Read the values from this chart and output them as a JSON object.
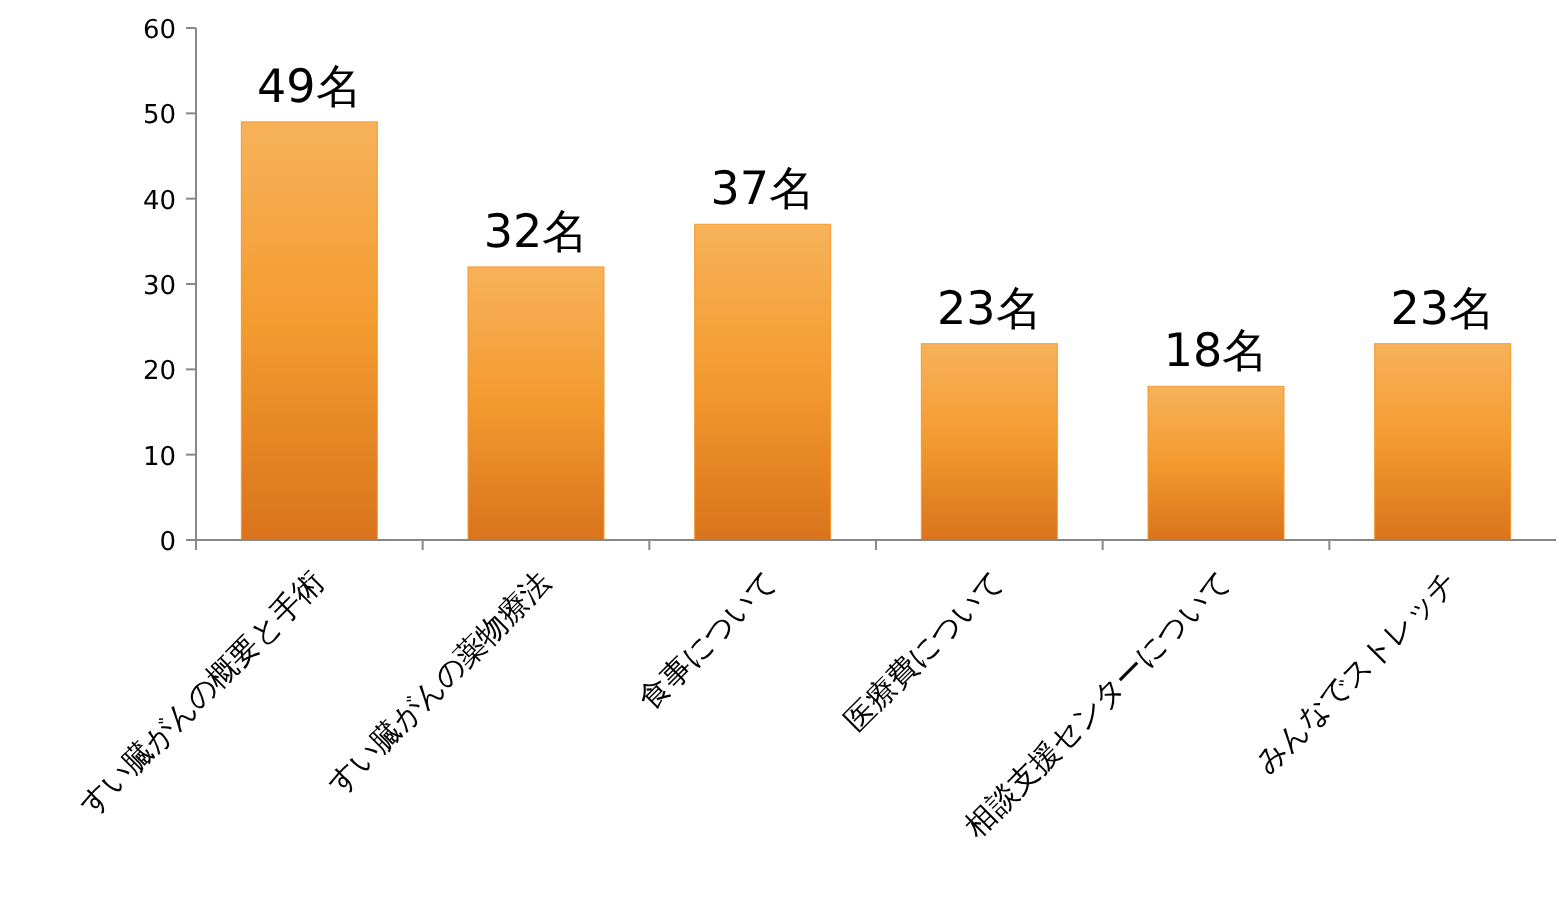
{
  "chart_data": {
    "type": "bar",
    "categories": [
      "すい臓がんの概要と手術",
      "すい臓がんの薬物療法",
      "食事について",
      "医療費について",
      "相談支援センターについて",
      "みんなでストレッチ"
    ],
    "values": [
      49,
      32,
      37,
      23,
      18,
      23
    ],
    "value_labels": [
      "49名",
      "32名",
      "37名",
      "23名",
      "18名",
      "23名"
    ],
    "color": "#f39a2e",
    "ylim": [
      0,
      60
    ],
    "yticks": [
      0,
      10,
      20,
      30,
      40,
      50,
      60
    ]
  }
}
